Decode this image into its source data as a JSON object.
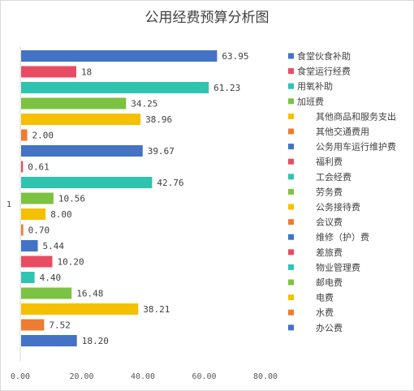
{
  "chart_data": {
    "type": "bar",
    "orientation": "horizontal",
    "title": "公用经费预算分析图",
    "category_label": "1",
    "xlim": [
      0,
      80
    ],
    "x_ticks": [
      "0.00",
      "20.00",
      "40.00",
      "60.00",
      "80.00"
    ],
    "grid": false,
    "legend_position": "right",
    "series": [
      {
        "name": "食堂伙食补助",
        "value": 63.95,
        "label": "63.95",
        "color": "#4472c4"
      },
      {
        "name": "食堂运行经费",
        "value": 18,
        "label": "18",
        "color": "#e84c62"
      },
      {
        "name": "用氧补助",
        "value": 61.23,
        "label": "61.23",
        "color": "#2ec4b0"
      },
      {
        "name": "加班费",
        "value": 34.25,
        "label": "34.25",
        "color": "#7dc242"
      },
      {
        "name": "其他商品和服务支出",
        "value": 38.96,
        "label": "38.96",
        "color": "#f5c000"
      },
      {
        "name": "其他交通费用",
        "value": 2.0,
        "label": "2.00",
        "color": "#ed7d31"
      },
      {
        "name": "公务用车运行维护费",
        "value": 39.67,
        "label": "39.67",
        "color": "#4472c4"
      },
      {
        "name": "福利费",
        "value": 0.61,
        "label": "0.61",
        "color": "#e84c62"
      },
      {
        "name": "工会经费",
        "value": 42.76,
        "label": "42.76",
        "color": "#2ec4b0"
      },
      {
        "name": "劳务费",
        "value": 10.56,
        "label": "10.56",
        "color": "#7dc242"
      },
      {
        "name": "公务接待费",
        "value": 8.0,
        "label": "8.00",
        "color": "#f5c000"
      },
      {
        "name": "会议费",
        "value": 0.7,
        "label": "0.70",
        "color": "#ed7d31"
      },
      {
        "name": "维修（护）费",
        "value": 5.44,
        "label": "5.44",
        "color": "#4472c4"
      },
      {
        "name": "差旅费",
        "value": 10.2,
        "label": "10.20",
        "color": "#e84c62"
      },
      {
        "name": "物业管理费",
        "value": 4.4,
        "label": "4.40",
        "color": "#2ec4b0"
      },
      {
        "name": "邮电费",
        "value": 16.48,
        "label": "16.48",
        "color": "#7dc242"
      },
      {
        "name": "电费",
        "value": 38.21,
        "label": "38.21",
        "color": "#f5c000"
      },
      {
        "name": "水费",
        "value": 7.52,
        "label": "7.52",
        "color": "#ed7d31"
      },
      {
        "name": "办公费",
        "value": 18.2,
        "label": "18.20",
        "color": "#4472c4"
      }
    ]
  }
}
